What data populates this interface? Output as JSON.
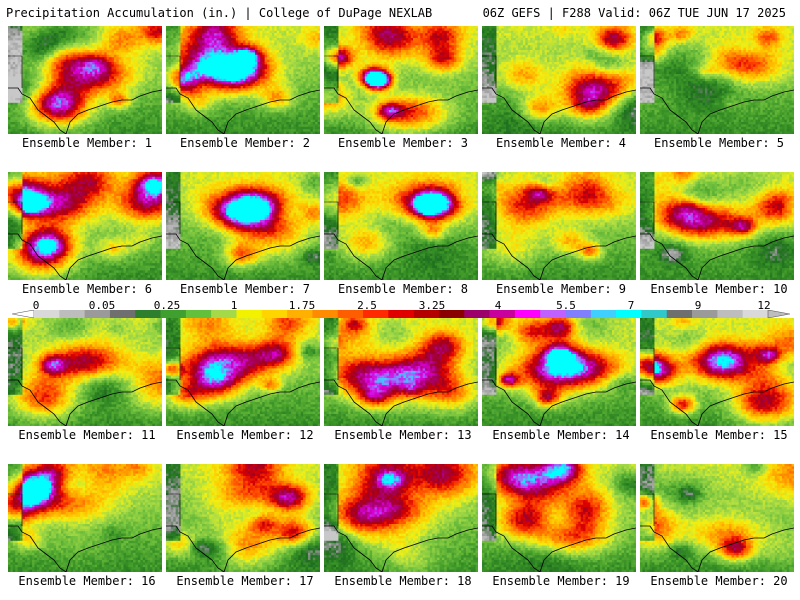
{
  "header": {
    "left_title": "Precipitation Accumulation (in.) | College of DuPage NEXLAB",
    "right_title": "06Z GEFS | F288 Valid: 06Z TUE JUN 17 2025"
  },
  "colorbar": {
    "tick_labels": [
      "0",
      "0.05",
      "0.25",
      "1",
      "1.75",
      "2.5",
      "3.25",
      "4",
      "5.5",
      "7",
      "9",
      "12"
    ],
    "colors": [
      "#d9d9d9",
      "#bdbdbd",
      "#9a9a9a",
      "#6f6f6f",
      "#2d7f2d",
      "#3f9f2f",
      "#62c03a",
      "#a4d94a",
      "#f2f200",
      "#ffd500",
      "#ffb000",
      "#ff8c00",
      "#ff5e00",
      "#ff2a00",
      "#e00000",
      "#b40000",
      "#8a0000",
      "#9c006b",
      "#c8009c",
      "#ff00ff",
      "#c060ff",
      "#7f7fff",
      "#3fd0ff",
      "#00ffff",
      "#30c8c8",
      "#6f6f6f",
      "#9a9a9a",
      "#bdbdbd",
      "#d9d9d9"
    ]
  },
  "members": [
    {
      "label": "Ensemble Member: 1",
      "seed": 11,
      "core": [
        0.55,
        0.45
      ],
      "hot": 0.85
    },
    {
      "label": "Ensemble Member: 2",
      "seed": 23,
      "core": [
        0.45,
        0.4
      ],
      "hot": 0.9
    },
    {
      "label": "Ensemble Member: 3",
      "seed": 37,
      "core": [
        0.55,
        0.8
      ],
      "hot": 0.8
    },
    {
      "label": "Ensemble Member: 4",
      "seed": 41,
      "core": [
        0.75,
        0.55
      ],
      "hot": 0.9
    },
    {
      "label": "Ensemble Member: 5",
      "seed": 53,
      "core": [
        0.65,
        0.35
      ],
      "hot": 0.7
    },
    {
      "label": "Ensemble Member: 6",
      "seed": 61,
      "core": [
        0.3,
        0.3
      ],
      "hot": 0.8
    },
    {
      "label": "Ensemble Member: 7",
      "seed": 71,
      "core": [
        0.55,
        0.3
      ],
      "hot": 0.85
    },
    {
      "label": "Ensemble Member: 8",
      "seed": 83,
      "core": [
        0.65,
        0.25
      ],
      "hot": 0.7
    },
    {
      "label": "Ensemble Member: 9",
      "seed": 97,
      "core": [
        0.7,
        0.2
      ],
      "hot": 0.6
    },
    {
      "label": "Ensemble Member: 10",
      "seed": 101,
      "core": [
        0.45,
        0.45
      ],
      "hot": 0.8
    },
    {
      "label": "Ensemble Member: 11",
      "seed": 113,
      "core": [
        0.5,
        0.4
      ],
      "hot": 0.85
    },
    {
      "label": "Ensemble Member: 12",
      "seed": 127,
      "core": [
        0.5,
        0.4
      ],
      "hot": 0.65
    },
    {
      "label": "Ensemble Member: 13",
      "seed": 131,
      "core": [
        0.4,
        0.55
      ],
      "hot": 0.7
    },
    {
      "label": "Ensemble Member: 14",
      "seed": 149,
      "core": [
        0.7,
        0.45
      ],
      "hot": 0.7
    },
    {
      "label": "Ensemble Member: 15",
      "seed": 151,
      "core": [
        0.55,
        0.4
      ],
      "hot": 0.75
    },
    {
      "label": "Ensemble Member: 16",
      "seed": 163,
      "core": [
        0.4,
        0.35
      ],
      "hot": 0.55
    },
    {
      "label": "Ensemble Member: 17",
      "seed": 173,
      "core": [
        0.55,
        0.3
      ],
      "hot": 0.5
    },
    {
      "label": "Ensemble Member: 18",
      "seed": 181,
      "core": [
        0.45,
        0.4
      ],
      "hot": 0.75
    },
    {
      "label": "Ensemble Member: 19",
      "seed": 191,
      "core": [
        0.55,
        0.65
      ],
      "hot": 0.95
    },
    {
      "label": "Ensemble Member: 20",
      "seed": 199,
      "core": [
        0.55,
        0.65
      ],
      "hot": 0.55
    }
  ]
}
